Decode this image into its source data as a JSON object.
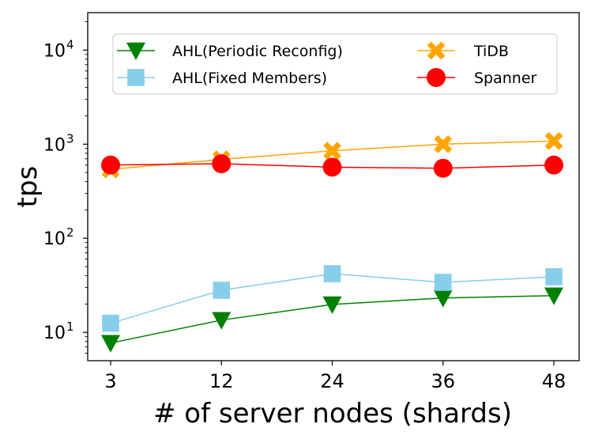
{
  "chart_data": {
    "type": "line",
    "xlabel": "# of server nodes (shards)",
    "ylabel": "tps",
    "yscale": "log",
    "ylim": [
      5,
      25000
    ],
    "categories": [
      "3",
      "12",
      "24",
      "36",
      "48"
    ],
    "yticks": [
      {
        "base": "10",
        "exp": "1",
        "value": 10
      },
      {
        "base": "10",
        "exp": "2",
        "value": 100
      },
      {
        "base": "10",
        "exp": "3",
        "value": 1000
      },
      {
        "base": "10",
        "exp": "4",
        "value": 10000
      }
    ],
    "legend_position": "top",
    "series": [
      {
        "name": "AHL(Periodic Reconfig)",
        "color": "#008000",
        "marker": "triangle-down",
        "values": [
          7.7,
          13.5,
          19.8,
          23.2,
          24.6
        ]
      },
      {
        "name": "AHL(Fixed Members)",
        "color": "#87ceeb",
        "marker": "square",
        "values": [
          12.5,
          28,
          42,
          34,
          39
        ]
      },
      {
        "name": "TiDB",
        "color": "#ffa500",
        "marker": "x-filled",
        "values": [
          540,
          690,
          850,
          1000,
          1080
        ]
      },
      {
        "name": "Spanner",
        "color": "#ff0000",
        "marker": "circle",
        "values": [
          600,
          620,
          570,
          555,
          600
        ]
      }
    ]
  }
}
